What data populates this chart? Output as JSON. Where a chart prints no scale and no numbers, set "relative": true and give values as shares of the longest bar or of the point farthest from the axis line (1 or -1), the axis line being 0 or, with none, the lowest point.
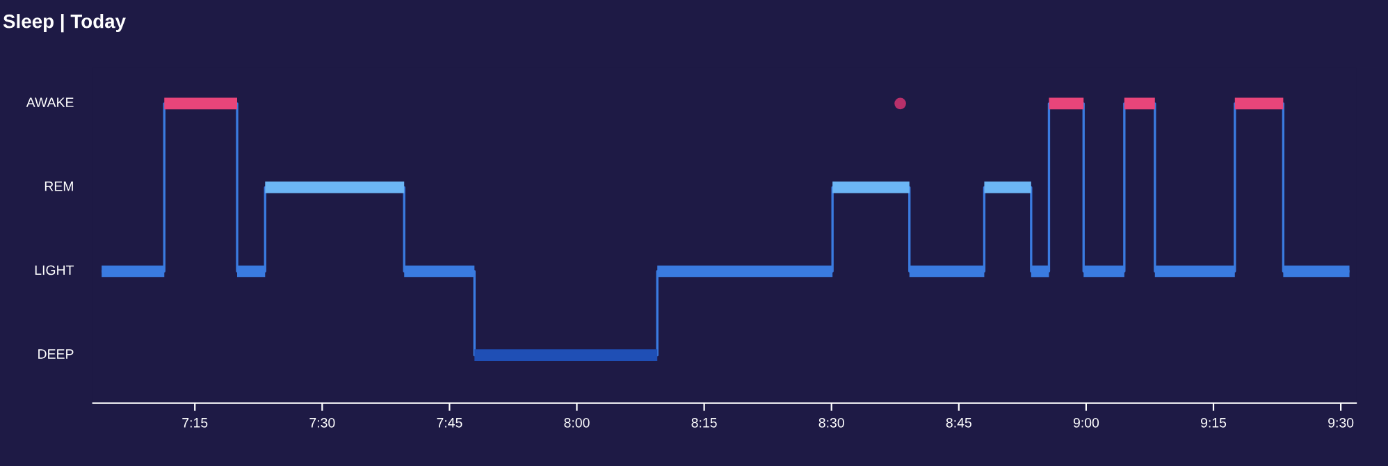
{
  "chart_data": {
    "type": "step",
    "title": "Sleep | Today",
    "relative": true,
    "annotations": [
      "AWAKE",
      "REM",
      "LIGHT",
      "DEEP"
    ],
    "xlim": [
      7.05,
      9.53
    ],
    "xticks": [
      {
        "value": 7.25,
        "label": "7:15"
      },
      {
        "value": 7.5,
        "label": "7:30"
      },
      {
        "value": 7.75,
        "label": "7:45"
      },
      {
        "value": 8.0,
        "label": "8:00"
      },
      {
        "value": 8.25,
        "label": "8:15"
      },
      {
        "value": 8.5,
        "label": "8:30"
      },
      {
        "value": 8.75,
        "label": "8:45"
      },
      {
        "value": 9.0,
        "label": "9:00"
      },
      {
        "value": 9.25,
        "label": "9:15"
      },
      {
        "value": 9.5,
        "label": "9:30"
      }
    ],
    "grid": false,
    "legend": false,
    "series": [
      {
        "color": "#3a7be0",
        "x": [
          7.067,
          7.19,
          7.333,
          7.388,
          7.661,
          7.799,
          8.158,
          8.502,
          8.653,
          8.8,
          8.892,
          8.927,
          8.995,
          9.075,
          9.135,
          9.292,
          9.387,
          9.517
        ],
        "values": [
          0.44,
          1,
          0.44,
          0.72,
          0.44,
          0.16,
          0.44,
          0.72,
          0.44,
          0.72,
          0.44,
          1,
          0.44,
          1,
          0.44,
          1,
          0.44,
          0.44
        ]
      },
      {
        "type": "line",
        "color": "#3a7be0",
        "x": [
          7.067,
          7.19
        ],
        "values": [
          0.44,
          0.44
        ]
      },
      {
        "type": "line",
        "color": "#e8457a",
        "x": [
          7.19,
          7.333
        ],
        "values": [
          1,
          1
        ]
      },
      {
        "type": "line",
        "color": "#3a7be0",
        "x": [
          7.333,
          7.388
        ],
        "values": [
          0.44,
          0.44
        ]
      },
      {
        "type": "line",
        "color": "#6cb6f5",
        "x": [
          7.388,
          7.661
        ],
        "values": [
          0.72,
          0.72
        ]
      },
      {
        "type": "line",
        "color": "#3a7be0",
        "x": [
          7.661,
          7.799
        ],
        "values": [
          0.44,
          0.44
        ]
      },
      {
        "type": "line",
        "color": "#1f4fb5",
        "x": [
          7.799,
          8.158
        ],
        "values": [
          0.16,
          0.16
        ]
      },
      {
        "type": "line",
        "color": "#3a7be0",
        "x": [
          8.158,
          8.502
        ],
        "values": [
          0.44,
          0.44
        ]
      },
      {
        "type": "line",
        "color": "#6cb6f5",
        "x": [
          8.502,
          8.653
        ],
        "values": [
          0.72,
          0.72
        ]
      },
      {
        "type": "line",
        "color": "#3a7be0",
        "x": [
          8.653,
          8.8
        ],
        "values": [
          0.44,
          0.44
        ]
      },
      {
        "type": "line",
        "color": "#6cb6f5",
        "x": [
          8.8,
          8.892
        ],
        "values": [
          0.72,
          0.72
        ]
      },
      {
        "type": "line",
        "color": "#3a7be0",
        "x": [
          8.892,
          8.927
        ],
        "values": [
          0.44,
          0.44
        ]
      },
      {
        "type": "line",
        "color": "#e8457a",
        "x": [
          8.927,
          8.995
        ],
        "values": [
          1,
          1
        ]
      },
      {
        "type": "line",
        "color": "#3a7be0",
        "x": [
          8.995,
          9.075
        ],
        "values": [
          0.44,
          0.44
        ]
      },
      {
        "type": "line",
        "color": "#e8457a",
        "x": [
          9.075,
          9.135
        ],
        "values": [
          1,
          1
        ]
      },
      {
        "type": "line",
        "color": "#3a7be0",
        "x": [
          9.135,
          9.292
        ],
        "values": [
          0.44,
          0.44
        ]
      },
      {
        "type": "line",
        "color": "#e8457a",
        "x": [
          9.292,
          9.387
        ],
        "values": [
          1,
          1
        ]
      },
      {
        "type": "line",
        "color": "#3a7be0",
        "x": [
          9.387,
          9.517
        ],
        "values": [
          0.44,
          0.44
        ]
      },
      {
        "type": "scatter",
        "x": [
          8.635
        ],
        "values": [
          1
        ],
        "color": "#b8306a"
      }
    ]
  }
}
